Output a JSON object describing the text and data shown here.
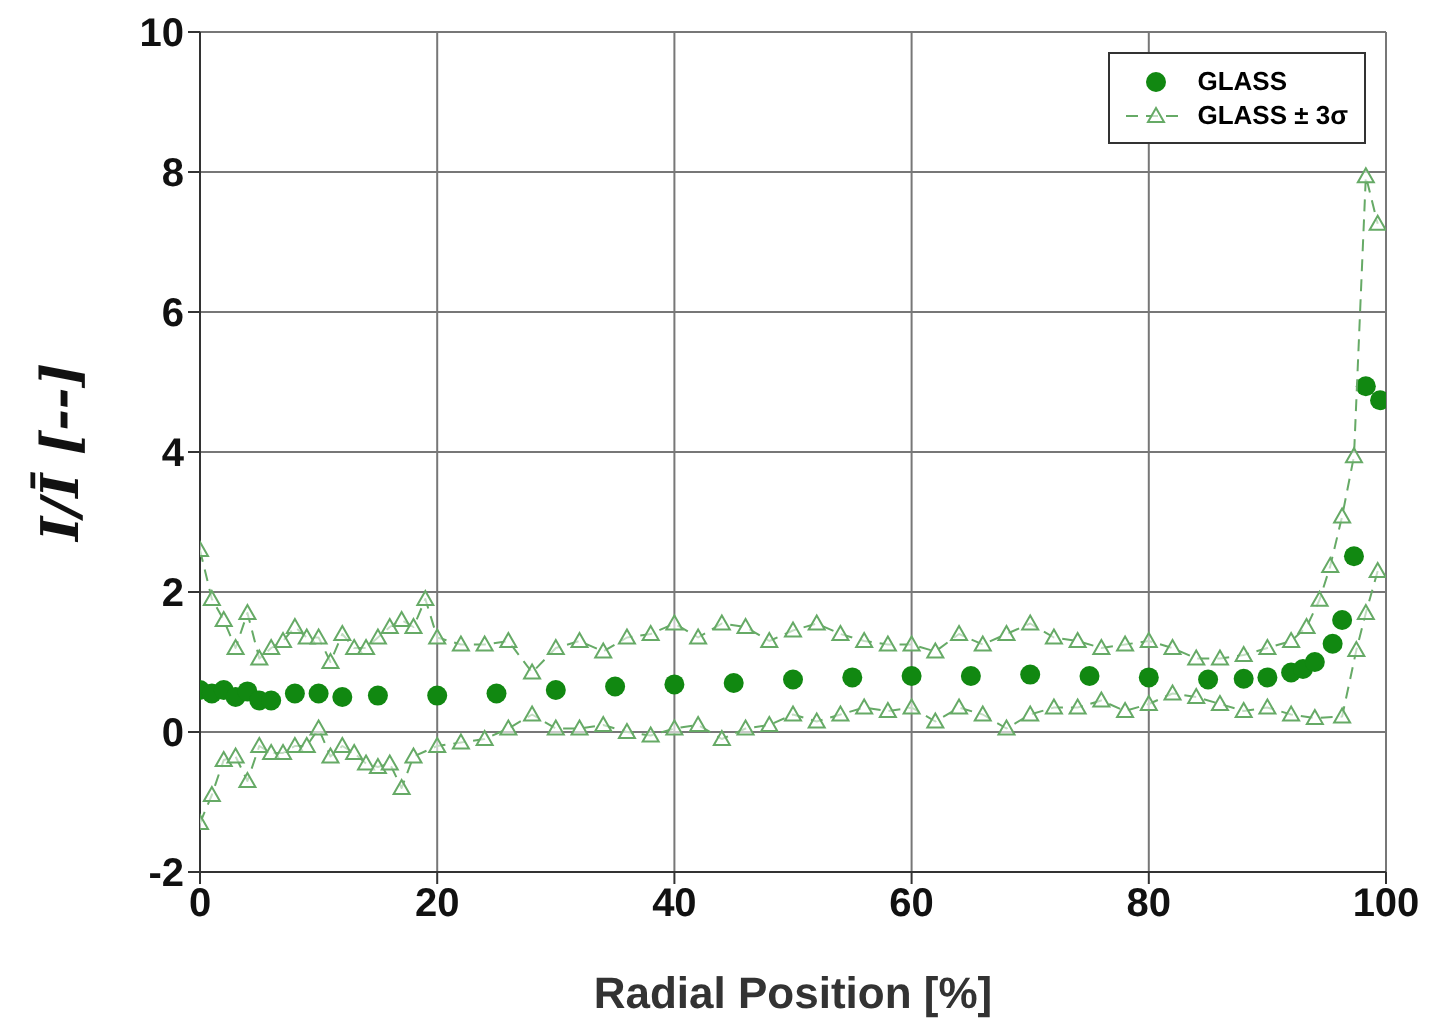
{
  "chart_data": {
    "type": "scatter",
    "xlabel": "Radial Position [%]",
    "ylabel": "I/Ī [--]",
    "xlim": [
      0,
      100
    ],
    "xticks": [
      0,
      20,
      40,
      60,
      80,
      100
    ],
    "ylim": [
      -2,
      10
    ],
    "yticks": [
      -2,
      0,
      2,
      4,
      6,
      8,
      10
    ],
    "grid": true,
    "legend": "top right",
    "series": [
      {
        "name": "GLASS",
        "marker": "circle",
        "color": "#118811",
        "x": [
          0,
          1,
          2,
          3,
          4,
          5,
          6,
          8,
          10,
          12,
          15,
          20,
          25,
          30,
          35,
          40,
          45,
          50,
          55,
          60,
          65,
          70,
          75,
          80,
          85,
          88,
          90,
          92,
          93,
          94,
          95.5,
          96.3,
          97.3,
          98.3,
          99.5
        ],
        "values": [
          0.6,
          0.55,
          0.6,
          0.5,
          0.58,
          0.45,
          0.45,
          0.55,
          0.55,
          0.5,
          0.52,
          0.52,
          0.55,
          0.6,
          0.65,
          0.68,
          0.7,
          0.75,
          0.78,
          0.8,
          0.8,
          0.82,
          0.8,
          0.78,
          0.75,
          0.76,
          0.78,
          0.85,
          0.9,
          1.0,
          1.26,
          1.6,
          2.51,
          4.94,
          4.74
        ]
      },
      {
        "name": "GLASS ± 3σ",
        "type": "line",
        "marker": "triangle",
        "line_style": "dashed",
        "color": "#66aa66",
        "x": [
          0,
          1,
          2,
          3,
          4,
          5,
          6,
          7,
          8,
          9,
          10,
          11,
          12,
          13,
          14,
          15,
          16,
          17,
          18,
          19,
          20,
          22,
          24,
          26,
          28,
          30,
          32,
          34,
          36,
          38,
          40,
          42,
          44,
          46,
          48,
          50,
          52,
          54,
          56,
          58,
          60,
          62,
          64,
          66,
          68,
          70,
          72,
          74,
          76,
          78,
          80,
          82,
          84,
          86,
          88,
          90,
          92,
          93.3,
          94.4,
          95.3,
          96.3,
          97.3,
          98.3,
          99.3
        ],
        "values": [
          2.6,
          1.9,
          1.6,
          1.2,
          1.7,
          1.05,
          1.2,
          1.3,
          1.5,
          1.35,
          1.35,
          1.0,
          1.4,
          1.2,
          1.2,
          1.35,
          1.5,
          1.6,
          1.5,
          1.9,
          1.35,
          1.25,
          1.25,
          1.3,
          0.85,
          1.2,
          1.3,
          1.15,
          1.35,
          1.4,
          1.55,
          1.35,
          1.55,
          1.5,
          1.3,
          1.45,
          1.55,
          1.4,
          1.3,
          1.25,
          1.25,
          1.15,
          1.4,
          1.25,
          1.4,
          1.55,
          1.35,
          1.3,
          1.2,
          1.25,
          1.3,
          1.2,
          1.05,
          1.05,
          1.1,
          1.2,
          1.3,
          1.5,
          1.89,
          2.37,
          3.08,
          3.94,
          7.94,
          7.26
        ]
      },
      {
        "type": "line",
        "marker": "triangle",
        "line_style": "dashed",
        "color": "#66aa66",
        "x": [
          0,
          1,
          2,
          3,
          4,
          5,
          6,
          7,
          8,
          9,
          10,
          11,
          12,
          13,
          14,
          15,
          16,
          17,
          18,
          20,
          22,
          24,
          26,
          28,
          30,
          32,
          34,
          36,
          38,
          40,
          42,
          44,
          46,
          48,
          50,
          52,
          54,
          56,
          58,
          60,
          62,
          64,
          66,
          68,
          70,
          72,
          74,
          76,
          78,
          80,
          82,
          84,
          86,
          88,
          90,
          92,
          94,
          96.3,
          97.5,
          98.3,
          99.3
        ],
        "values": [
          -1.3,
          -0.9,
          -0.4,
          -0.35,
          -0.7,
          -0.2,
          -0.3,
          -0.3,
          -0.2,
          -0.2,
          0.05,
          -0.35,
          -0.2,
          -0.3,
          -0.45,
          -0.5,
          -0.45,
          -0.8,
          -0.35,
          -0.2,
          -0.15,
          -0.1,
          0.05,
          0.25,
          0.05,
          0.05,
          0.1,
          0,
          -0.05,
          0.05,
          0.1,
          -0.1,
          0.05,
          0.1,
          0.25,
          0.15,
          0.25,
          0.35,
          0.3,
          0.35,
          0.15,
          0.35,
          0.25,
          0.05,
          0.25,
          0.35,
          0.35,
          0.45,
          0.3,
          0.4,
          0.55,
          0.5,
          0.4,
          0.3,
          0.35,
          0.25,
          0.2,
          0.22,
          1.17,
          1.7,
          2.3
        ]
      }
    ]
  }
}
